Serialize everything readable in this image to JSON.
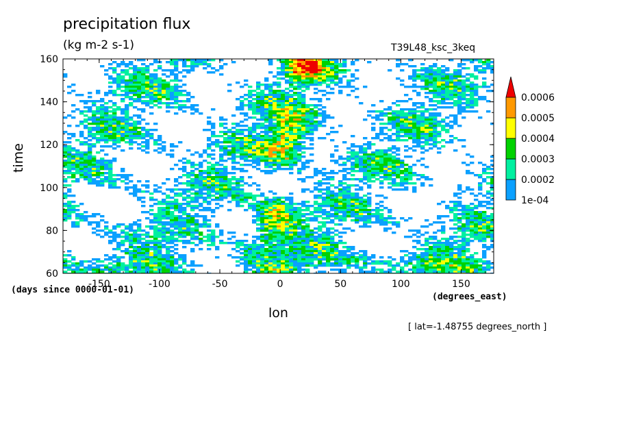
{
  "chart_data": {
    "type": "heatmap",
    "title": "precipitation flux",
    "units": "(kg m-2 s-1)",
    "run_name": "T39L48_ksc_3keq",
    "xlabel": "lon",
    "x_units": "(degrees_east)",
    "ylabel": "time",
    "y_units": "(days since 0000-01-01)",
    "xlim": [
      -180,
      177
    ],
    "ylim": [
      60,
      160
    ],
    "x_ticks": [
      -150,
      -100,
      -50,
      0,
      50,
      100,
      150
    ],
    "y_ticks": [
      60,
      80,
      100,
      120,
      140,
      160
    ],
    "footnote": "[ lat=-1.48755 degrees_north ]",
    "colorbar": {
      "levels": [
        "1e-04",
        "0.0002",
        "0.0003",
        "0.0004",
        "0.0005",
        "0.0006"
      ],
      "colors": [
        "#ffffff",
        "#0aa0ff",
        "#00f0a0",
        "#00d200",
        "#ffff00",
        "#ff9900",
        "#ee0000"
      ]
    }
  }
}
